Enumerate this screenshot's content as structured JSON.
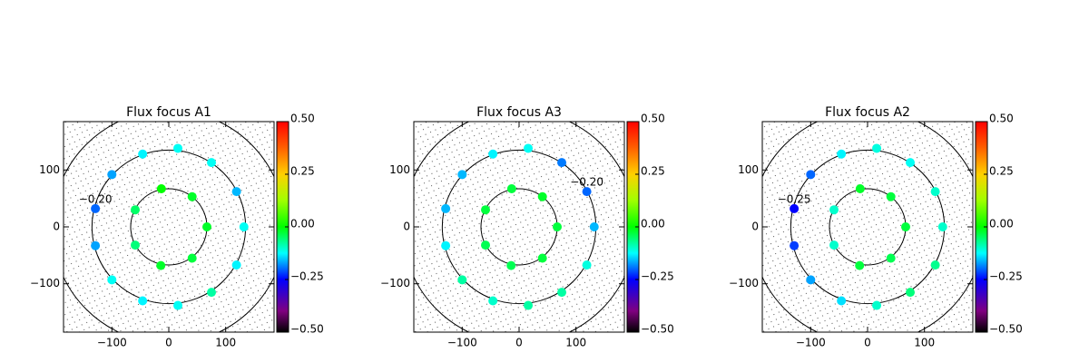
{
  "chart_data": [
    {
      "type": "scatter",
      "title": "Flux focus A1",
      "x": [
        -13,
        41,
        67,
        41,
        -14,
        -59,
        -59,
        16,
        75,
        119,
        132,
        119,
        75,
        16,
        -46,
        -100,
        -129,
        -129,
        -100,
        -46
      ],
      "y": [
        67,
        53,
        0,
        -55,
        -68,
        -32,
        30,
        138,
        113,
        62,
        0,
        -67,
        -115,
        -138,
        -130,
        -93,
        -33,
        32,
        92,
        128
      ],
      "values": [
        0,
        -0.02,
        -0.02,
        -0.03,
        -0.02,
        -0.06,
        -0.05,
        -0.12,
        -0.12,
        -0.16,
        -0.12,
        -0.13,
        -0.08,
        -0.12,
        -0.13,
        -0.12,
        -0.17,
        -0.2,
        -0.17,
        -0.13
      ],
      "value_labels": [
        null,
        null,
        null,
        null,
        null,
        null,
        null,
        null,
        null,
        null,
        null,
        null,
        null,
        null,
        null,
        null,
        null,
        "−0.20",
        null,
        null
      ],
      "rings": [
        67,
        135,
        205
      ],
      "xlim": [
        -185,
        185
      ],
      "ylim": [
        -185,
        185
      ],
      "xticks": [
        {
          "value": -100,
          "label": "−100"
        },
        0,
        100
      ],
      "yticks": [
        {
          "value": -100,
          "label": "−100"
        },
        0,
        100
      ],
      "colormap": "rainbow",
      "zlim": [
        -0.5,
        0.5
      ],
      "zticks": [
        {
          "value": -0.5,
          "label": "−0.50"
        },
        {
          "value": -0.25,
          "label": "−0.25"
        },
        {
          "value": 0,
          "label": "0.00"
        },
        {
          "value": 0.25,
          "label": "0.25"
        },
        {
          "value": 0.5,
          "label": "0.50"
        }
      ]
    },
    {
      "type": "scatter",
      "title": "Flux focus A3",
      "x": [
        -13,
        41,
        67,
        41,
        -14,
        -59,
        -59,
        16,
        75,
        119,
        132,
        119,
        75,
        16,
        -46,
        -100,
        -129,
        -129,
        -100,
        -46
      ],
      "y": [
        67,
        53,
        0,
        -55,
        -68,
        -32,
        30,
        138,
        113,
        62,
        0,
        -67,
        -115,
        -138,
        -130,
        -93,
        -33,
        32,
        92,
        128
      ],
      "values": [
        -0.03,
        -0.02,
        -0.03,
        -0.03,
        -0.04,
        -0.04,
        -0.03,
        -0.12,
        -0.19,
        -0.2,
        -0.16,
        -0.11,
        -0.08,
        -0.08,
        -0.1,
        -0.08,
        -0.13,
        -0.16,
        -0.16,
        -0.13
      ],
      "value_labels": [
        null,
        null,
        null,
        null,
        null,
        null,
        null,
        null,
        null,
        "−0.20",
        null,
        null,
        null,
        null,
        null,
        null,
        null,
        null,
        null,
        null
      ],
      "rings": [
        67,
        135,
        205
      ],
      "xlim": [
        -185,
        185
      ],
      "ylim": [
        -185,
        185
      ],
      "xticks": [
        {
          "value": -100,
          "label": "−100"
        },
        0,
        100
      ],
      "yticks": [
        {
          "value": -100,
          "label": "−100"
        },
        0,
        100
      ],
      "colormap": "rainbow",
      "zlim": [
        -0.5,
        0.5
      ],
      "zticks": [
        {
          "value": -0.5,
          "label": "−0.50"
        },
        {
          "value": -0.25,
          "label": "−0.25"
        },
        {
          "value": 0,
          "label": "0.00"
        },
        {
          "value": 0.25,
          "label": "0.25"
        },
        {
          "value": 0.5,
          "label": "0.50"
        }
      ]
    },
    {
      "type": "scatter",
      "title": "Flux focus A2",
      "x": [
        -13,
        41,
        67,
        41,
        -14,
        -59,
        -59,
        16,
        75,
        119,
        132,
        119,
        75,
        16,
        -46,
        -100,
        -129,
        -129,
        -100,
        -46
      ],
      "y": [
        67,
        53,
        0,
        -55,
        -68,
        -32,
        30,
        138,
        113,
        62,
        0,
        -67,
        -115,
        -138,
        -130,
        -93,
        -33,
        32,
        92,
        128
      ],
      "values": [
        -0.02,
        -0.03,
        -0.03,
        -0.04,
        -0.03,
        -0.1,
        -0.1,
        -0.11,
        -0.12,
        -0.1,
        -0.1,
        -0.07,
        -0.06,
        -0.1,
        -0.14,
        -0.17,
        -0.22,
        -0.25,
        -0.2,
        -0.13
      ],
      "value_labels": [
        null,
        null,
        null,
        null,
        null,
        null,
        null,
        null,
        null,
        null,
        null,
        null,
        null,
        null,
        null,
        null,
        null,
        "−0.25",
        null,
        null
      ],
      "rings": [
        67,
        135,
        205
      ],
      "xlim": [
        -185,
        185
      ],
      "ylim": [
        -185,
        185
      ],
      "xticks": [
        {
          "value": -100,
          "label": "−100"
        },
        0,
        100
      ],
      "yticks": [
        {
          "value": -100,
          "label": "−100"
        },
        0,
        100
      ],
      "colormap": "rainbow",
      "zlim": [
        -0.5,
        0.5
      ],
      "zticks": [
        {
          "value": -0.5,
          "label": "−0.50"
        },
        {
          "value": -0.25,
          "label": "−0.25"
        },
        {
          "value": 0,
          "label": "0.00"
        },
        {
          "value": 0.25,
          "label": "0.25"
        },
        {
          "value": 0.5,
          "label": "0.50"
        }
      ]
    }
  ]
}
